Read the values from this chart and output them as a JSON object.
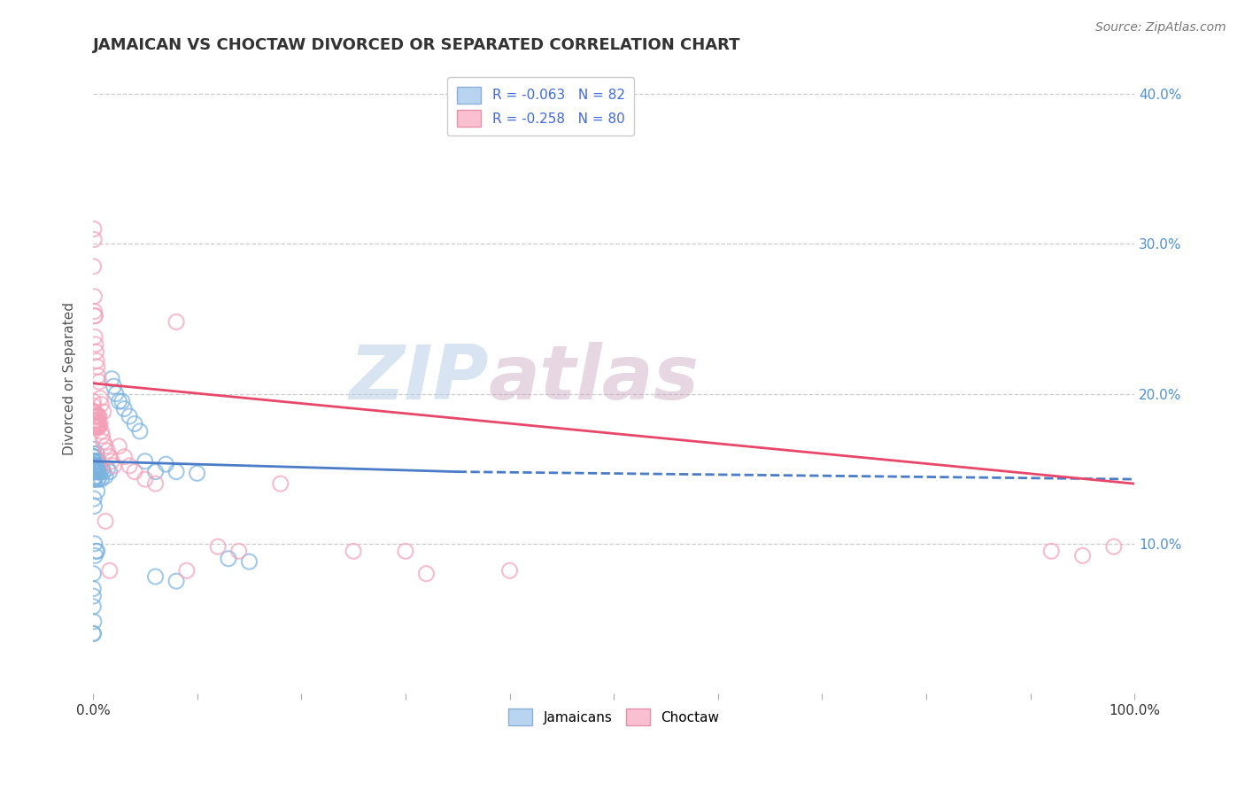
{
  "title": "JAMAICAN VS CHOCTAW DIVORCED OR SEPARATED CORRELATION CHART",
  "source_text": "Source: ZipAtlas.com",
  "ylabel_label": "Divorced or Separated",
  "x_min": 0.0,
  "x_max": 1.0,
  "y_min": 0.0,
  "y_max": 0.42,
  "blue_color": "#7ab3e0",
  "pink_color": "#f4a0b8",
  "blue_line_color": "#4a7cc7",
  "pink_line_color": "#e8476a",
  "watermark_zip": "ZIP",
  "watermark_atlas": "atlas",
  "blue_scatter": [
    [
      0.0002,
      0.155
    ],
    [
      0.0003,
      0.15
    ],
    [
      0.0004,
      0.158
    ],
    [
      0.0005,
      0.153
    ],
    [
      0.0006,
      0.148
    ],
    [
      0.0002,
      0.163
    ],
    [
      0.0004,
      0.158
    ],
    [
      0.0005,
      0.15
    ],
    [
      0.0003,
      0.155
    ],
    [
      0.0006,
      0.148
    ],
    [
      0.0007,
      0.143
    ],
    [
      0.0008,
      0.152
    ],
    [
      0.0005,
      0.16
    ],
    [
      0.0009,
      0.155
    ],
    [
      0.001,
      0.148
    ],
    [
      0.0011,
      0.143
    ],
    [
      0.0012,
      0.15
    ],
    [
      0.0014,
      0.152
    ],
    [
      0.0013,
      0.158
    ],
    [
      0.0016,
      0.148
    ],
    [
      0.0015,
      0.155
    ],
    [
      0.0017,
      0.143
    ],
    [
      0.0018,
      0.15
    ],
    [
      0.0019,
      0.152
    ],
    [
      0.002,
      0.148
    ],
    [
      0.0022,
      0.155
    ],
    [
      0.0024,
      0.15
    ],
    [
      0.0026,
      0.145
    ],
    [
      0.0028,
      0.148
    ],
    [
      0.003,
      0.152
    ],
    [
      0.0032,
      0.155
    ],
    [
      0.0034,
      0.148
    ],
    [
      0.0036,
      0.16
    ],
    [
      0.0038,
      0.15
    ],
    [
      0.004,
      0.148
    ],
    [
      0.0042,
      0.155
    ],
    [
      0.0044,
      0.143
    ],
    [
      0.0046,
      0.148
    ],
    [
      0.0048,
      0.15
    ],
    [
      0.005,
      0.152
    ],
    [
      0.0052,
      0.155
    ],
    [
      0.0054,
      0.143
    ],
    [
      0.0056,
      0.148
    ],
    [
      0.0058,
      0.15
    ],
    [
      0.006,
      0.152
    ],
    [
      0.007,
      0.148
    ],
    [
      0.008,
      0.143
    ],
    [
      0.009,
      0.15
    ],
    [
      0.01,
      0.148
    ],
    [
      0.012,
      0.145
    ],
    [
      0.014,
      0.15
    ],
    [
      0.016,
      0.148
    ],
    [
      0.018,
      0.21
    ],
    [
      0.02,
      0.205
    ],
    [
      0.022,
      0.2
    ],
    [
      0.025,
      0.195
    ],
    [
      0.028,
      0.195
    ],
    [
      0.03,
      0.19
    ],
    [
      0.035,
      0.185
    ],
    [
      0.04,
      0.18
    ],
    [
      0.045,
      0.175
    ],
    [
      0.05,
      0.155
    ],
    [
      0.06,
      0.148
    ],
    [
      0.07,
      0.153
    ],
    [
      0.08,
      0.148
    ],
    [
      0.1,
      0.147
    ],
    [
      0.13,
      0.09
    ],
    [
      0.15,
      0.088
    ],
    [
      0.0005,
      0.04
    ],
    [
      0.0008,
      0.048
    ],
    [
      0.0003,
      0.058
    ],
    [
      0.004,
      0.135
    ],
    [
      0.0003,
      0.065
    ],
    [
      0.0016,
      0.1
    ],
    [
      0.002,
      0.092
    ],
    [
      0.003,
      0.095
    ],
    [
      0.004,
      0.095
    ],
    [
      0.001,
      0.13
    ],
    [
      0.0012,
      0.125
    ],
    [
      0.0001,
      0.04
    ],
    [
      0.06,
      0.078
    ],
    [
      0.08,
      0.075
    ],
    [
      0.0002,
      0.07
    ],
    [
      0.0004,
      0.08
    ]
  ],
  "pink_scatter": [
    [
      0.0004,
      0.195
    ],
    [
      0.0006,
      0.188
    ],
    [
      0.0008,
      0.185
    ],
    [
      0.001,
      0.178
    ],
    [
      0.0003,
      0.192
    ],
    [
      0.0005,
      0.187
    ],
    [
      0.0007,
      0.182
    ],
    [
      0.0009,
      0.178
    ],
    [
      0.0006,
      0.188
    ],
    [
      0.0008,
      0.18
    ],
    [
      0.001,
      0.185
    ],
    [
      0.0012,
      0.178
    ],
    [
      0.0014,
      0.182
    ],
    [
      0.0016,
      0.178
    ],
    [
      0.0018,
      0.18
    ],
    [
      0.002,
      0.188
    ],
    [
      0.0022,
      0.182
    ],
    [
      0.0024,
      0.178
    ],
    [
      0.0026,
      0.18
    ],
    [
      0.0028,
      0.185
    ],
    [
      0.003,
      0.178
    ],
    [
      0.0032,
      0.18
    ],
    [
      0.0034,
      0.185
    ],
    [
      0.0036,
      0.178
    ],
    [
      0.0038,
      0.182
    ],
    [
      0.004,
      0.18
    ],
    [
      0.0042,
      0.185
    ],
    [
      0.0044,
      0.18
    ],
    [
      0.0046,
      0.182
    ],
    [
      0.0048,
      0.178
    ],
    [
      0.005,
      0.18
    ],
    [
      0.0052,
      0.185
    ],
    [
      0.0054,
      0.178
    ],
    [
      0.0056,
      0.18
    ],
    [
      0.0058,
      0.185
    ],
    [
      0.006,
      0.178
    ],
    [
      0.007,
      0.18
    ],
    [
      0.008,
      0.175
    ],
    [
      0.009,
      0.172
    ],
    [
      0.01,
      0.168
    ],
    [
      0.012,
      0.165
    ],
    [
      0.014,
      0.162
    ],
    [
      0.016,
      0.158
    ],
    [
      0.018,
      0.155
    ],
    [
      0.02,
      0.152
    ],
    [
      0.025,
      0.165
    ],
    [
      0.03,
      0.158
    ],
    [
      0.035,
      0.152
    ],
    [
      0.04,
      0.148
    ],
    [
      0.05,
      0.143
    ],
    [
      0.06,
      0.14
    ],
    [
      0.0005,
      0.285
    ],
    [
      0.0008,
      0.31
    ],
    [
      0.001,
      0.303
    ],
    [
      0.0012,
      0.265
    ],
    [
      0.0014,
      0.255
    ],
    [
      0.0016,
      0.252
    ],
    [
      0.0018,
      0.238
    ],
    [
      0.002,
      0.252
    ],
    [
      0.0025,
      0.233
    ],
    [
      0.003,
      0.228
    ],
    [
      0.0035,
      0.222
    ],
    [
      0.004,
      0.218
    ],
    [
      0.005,
      0.212
    ],
    [
      0.006,
      0.208
    ],
    [
      0.007,
      0.197
    ],
    [
      0.008,
      0.193
    ],
    [
      0.01,
      0.188
    ],
    [
      0.08,
      0.248
    ],
    [
      0.12,
      0.098
    ],
    [
      0.14,
      0.095
    ],
    [
      0.18,
      0.14
    ],
    [
      0.25,
      0.095
    ],
    [
      0.3,
      0.095
    ],
    [
      0.4,
      0.082
    ],
    [
      0.98,
      0.098
    ],
    [
      0.92,
      0.095
    ],
    [
      0.95,
      0.092
    ],
    [
      0.012,
      0.115
    ],
    [
      0.016,
      0.082
    ],
    [
      0.09,
      0.082
    ],
    [
      0.32,
      0.08
    ]
  ],
  "blue_line": {
    "x": [
      0.0,
      0.35,
      1.0
    ],
    "y": [
      0.155,
      0.148,
      0.143
    ],
    "solid_end": 0.35
  },
  "pink_line": {
    "x_start": 0.0,
    "x_end": 1.0,
    "y_start": 0.207,
    "y_end": 0.14
  },
  "grid_color": "#cccccc",
  "bg_color": "#ffffff",
  "plot_bg_color": "#ffffff",
  "yticks": [
    0.1,
    0.2,
    0.3,
    0.4
  ],
  "ytick_labels": [
    "10.0%",
    "20.0%",
    "30.0%",
    "40.0%"
  ],
  "xtick_labels_left": "0.0%",
  "xtick_labels_right": "100.0%"
}
